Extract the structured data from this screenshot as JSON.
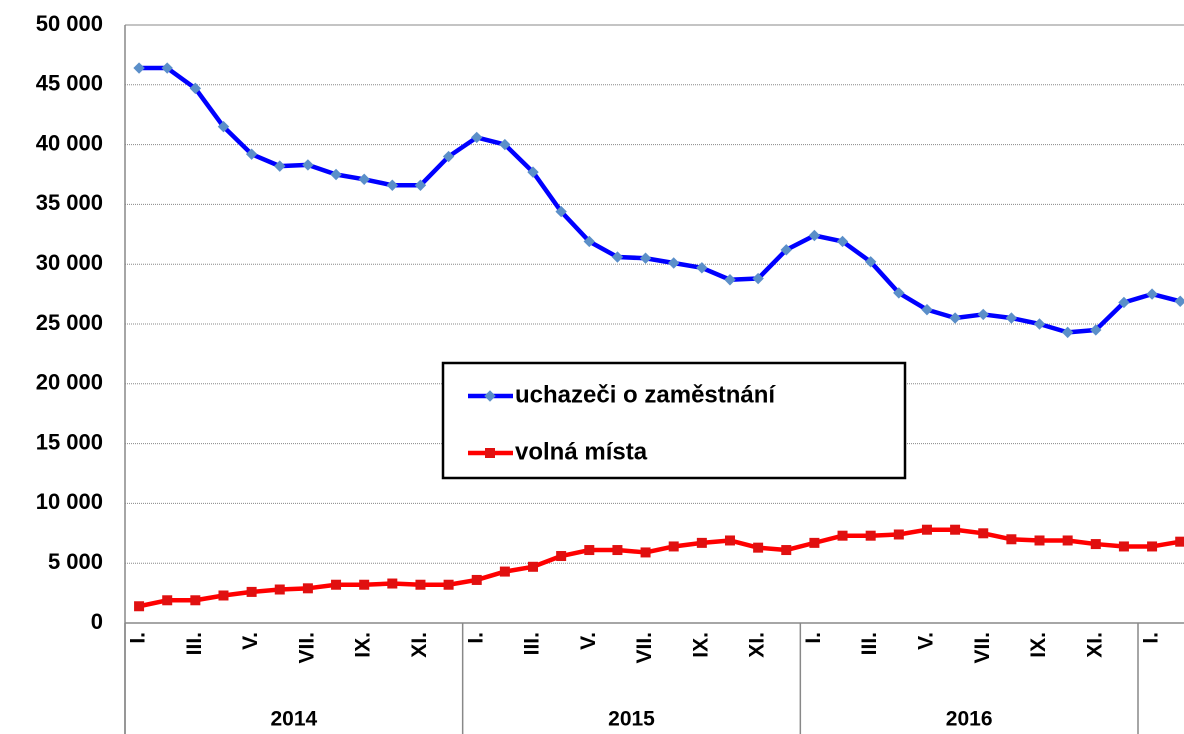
{
  "chart_data": {
    "type": "line",
    "categories": [
      "I.",
      null,
      "III.",
      null,
      "V.",
      null,
      "VII.",
      null,
      "IX.",
      null,
      "XI.",
      null,
      "I.",
      null,
      "III.",
      null,
      "V.",
      null,
      "VII.",
      null,
      "IX.",
      null,
      "XI.",
      null,
      "I.",
      null,
      "III.",
      null,
      "V.",
      null,
      "VII.",
      null,
      "IX.",
      null,
      "XI.",
      null,
      "I.",
      null
    ],
    "groups": [
      "2014",
      "2015",
      "2016",
      null
    ],
    "series": [
      {
        "name": "uchazeči o zaměstnání",
        "color": "#0000ff",
        "marker_color": "#5b8fc9",
        "marker": "diamond",
        "values": [
          46400,
          46400,
          44700,
          41500,
          39200,
          38200,
          38300,
          37500,
          37100,
          36600,
          36600,
          39000,
          40600,
          40000,
          37700,
          34400,
          31900,
          30600,
          30500,
          30100,
          29700,
          28700,
          28800,
          31200,
          32400,
          31900,
          30200,
          27600,
          26200,
          25500,
          25800,
          25500,
          25000,
          24300,
          24500,
          26800,
          27500,
          26900
        ]
      },
      {
        "name": "volná místa",
        "color": "#ff0000",
        "marker_color": "#e01010",
        "marker": "square",
        "values": [
          1400,
          1900,
          1900,
          2300,
          2600,
          2800,
          2900,
          3200,
          3200,
          3300,
          3200,
          3200,
          3600,
          4300,
          4700,
          5600,
          6100,
          6100,
          5900,
          6400,
          6700,
          6900,
          6300,
          6100,
          6700,
          7300,
          7300,
          7400,
          7800,
          7800,
          7500,
          7000,
          6900,
          6900,
          6600,
          6400,
          6400,
          6800
        ]
      }
    ],
    "ylim": [
      0,
      50000
    ],
    "yticks": [
      0,
      {
        "value": 5000,
        "label": "5 000"
      },
      {
        "value": 10000,
        "label": "10 000"
      },
      {
        "value": 15000,
        "label": "15 000"
      },
      {
        "value": 20000,
        "label": "20 000"
      },
      {
        "value": 25000,
        "label": "25 000"
      },
      {
        "value": 30000,
        "label": "30 000"
      },
      {
        "value": 35000,
        "label": "35 000"
      },
      {
        "value": 40000,
        "label": "40 000"
      },
      {
        "value": 45000,
        "label": "45 000"
      },
      {
        "value": 50000,
        "label": "50 000"
      }
    ],
    "grid": true,
    "legend": "center"
  }
}
